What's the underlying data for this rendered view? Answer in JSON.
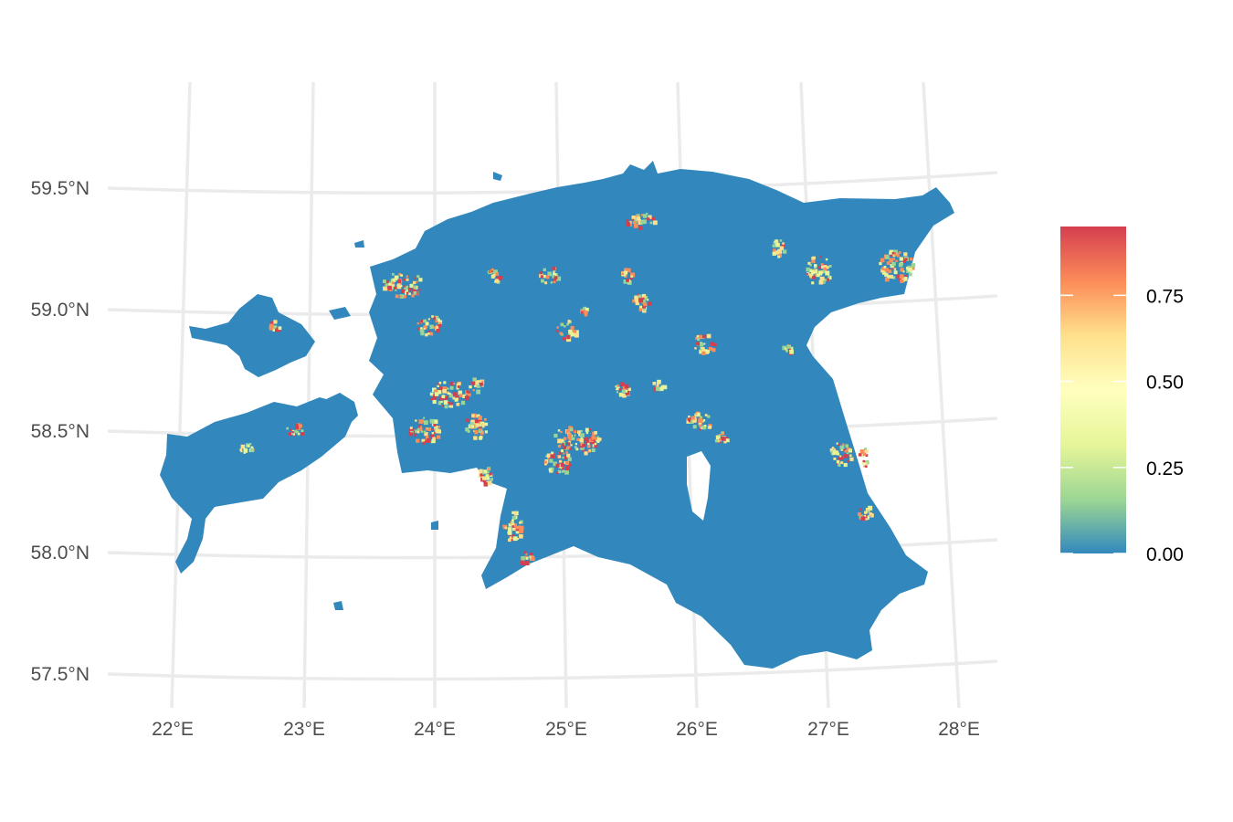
{
  "map": {
    "region": "Estonia",
    "projection": "projected (curved graticule)",
    "graticule_visible": true,
    "background": "#ffffff",
    "land_base_color": "#3288bd",
    "longitude_labels": [
      "22°E",
      "23°E",
      "24°E",
      "25°E",
      "26°E",
      "27°E",
      "28°E"
    ],
    "latitude_labels": [
      "59.5°N",
      "59.0°N",
      "58.5°N",
      "58.0°N",
      "57.5°N"
    ]
  },
  "legend": {
    "title": "",
    "position": "right",
    "type": "continuous colorbar",
    "palette": [
      "#3288bd",
      "#99d594",
      "#e6f598",
      "#ffffbf",
      "#fee08b",
      "#fc8d59",
      "#d53e4f"
    ],
    "min": 0,
    "max": 0.95,
    "ticks": [
      {
        "value": 0.75,
        "label": "0.75"
      },
      {
        "value": 0.5,
        "label": "0.50"
      },
      {
        "value": 0.25,
        "label": "0.25"
      },
      {
        "value": 0,
        "label": "0.00"
      }
    ]
  },
  "hotspot_colors": [
    "#d53e4f",
    "#fc8d59",
    "#fee08b",
    "#e6f598",
    "#99d594"
  ]
}
